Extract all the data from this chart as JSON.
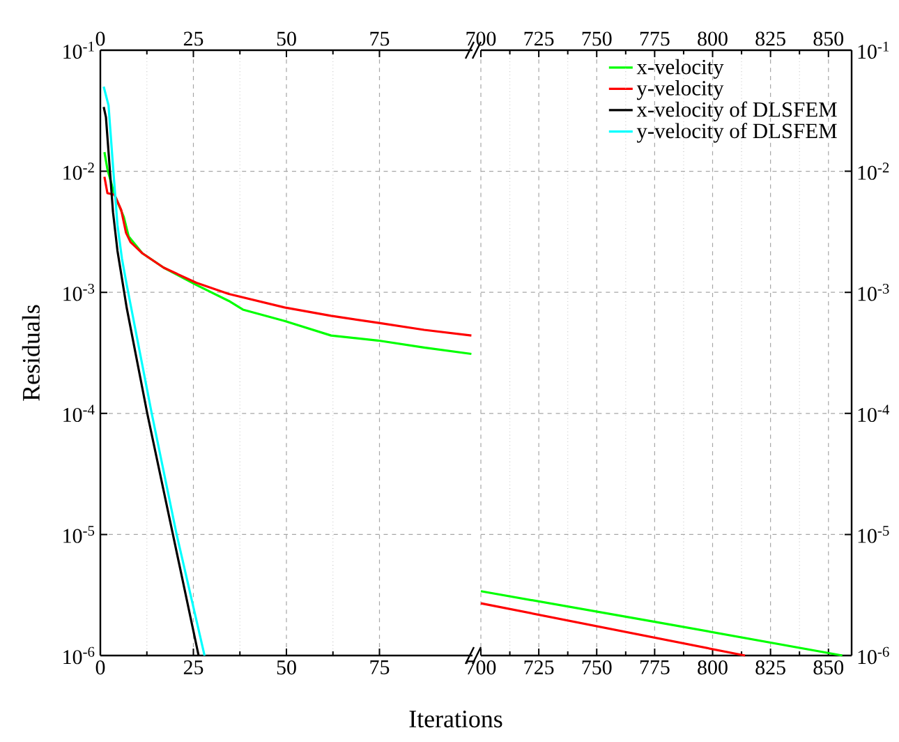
{
  "chart_data": [
    {
      "type": "line",
      "xlabel": "Iterations",
      "ylabel": "Residuals",
      "log": "y",
      "grid": true,
      "legend": "top right",
      "xlim": [
        0,
        100
      ],
      "xticks": [
        0,
        25,
        50,
        75
      ],
      "x2lim": [
        0,
        100
      ],
      "x2ticks": [
        0,
        25,
        50,
        75
      ],
      "ylim": [
        1e-06,
        0.1
      ],
      "yticks": [
        {
          "value": 1e-06,
          "label": "10$^{-6}$"
        },
        {
          "value": 1e-05,
          "label": "10$^{-5}$"
        },
        {
          "value": 0.0001,
          "label": "10$^{-4}$"
        },
        {
          "value": 0.001,
          "label": "10$^{-3}$"
        },
        {
          "value": 0.01,
          "label": "10$^{-2}$"
        },
        {
          "value": 0.1,
          "label": "10$^{-1}$"
        }
      ],
      "series": [
        {
          "name": "x-velocity",
          "color": "#00ff00",
          "x": [
            1.1,
            1.9,
            3.8,
            6.3,
            7.6,
            11.3,
            17,
            25.8,
            34.5,
            38.3,
            49.5,
            62,
            74.6,
            87,
            99.7
          ],
          "values": [
            0.0144,
            0.0104,
            0.0064,
            0.0042,
            0.0029,
            0.0021,
            0.0016,
            0.00115,
            0.00085,
            0.00072,
            0.00058,
            0.00044,
            0.0004,
            0.00035,
            0.00031
          ]
        },
        {
          "name": "y-velocity",
          "color": "#ff0000",
          "x": [
            1.1,
            1.9,
            3.8,
            5.6,
            6.9,
            8.1,
            11.3,
            17,
            25.8,
            34.5,
            49.5,
            62,
            74.6,
            87,
            99.7
          ],
          "values": [
            0.009,
            0.0066,
            0.0064,
            0.0048,
            0.0031,
            0.0026,
            0.0021,
            0.0016,
            0.0012,
            0.00097,
            0.00075,
            0.00064,
            0.00056,
            0.00049,
            0.00044
          ]
        },
        {
          "name": "x-velocity of DLSFEM",
          "color": "#000000",
          "x": [
            0.9,
            1.5,
            3.4,
            4.6,
            7.1,
            12.6,
            19.5,
            26.4
          ],
          "values": [
            0.034,
            0.028,
            0.0046,
            0.0022,
            0.00074,
            0.0001,
            1e-05,
            1e-06
          ]
        },
        {
          "name": "y-velocity of DLSFEM",
          "color": "#00ffff",
          "x": [
            0.9,
            2.2,
            3.4,
            4.6,
            5.8,
            7.1,
            13.8,
            20.5,
            28
          ],
          "values": [
            0.05,
            0.035,
            0.011,
            0.0036,
            0.0019,
            0.00115,
            0.0001,
            1e-05,
            1e-06
          ]
        }
      ]
    },
    {
      "type": "line",
      "log": "y2",
      "grid": true,
      "xlim": [
        700,
        860
      ],
      "xticks": [
        700,
        725,
        750,
        775,
        800,
        825,
        850
      ],
      "x2lim": [
        700,
        860
      ],
      "x2ticks": [
        700,
        725,
        750,
        775,
        800,
        825,
        850
      ],
      "y2lim": [
        1e-06,
        0.1
      ],
      "y2ticks": [
        {
          "value": 1e-06,
          "label": "10$^{-6}$"
        },
        {
          "value": 1e-05,
          "label": "10$^{-5}$"
        },
        {
          "value": 0.0001,
          "label": "10$^{-4}$"
        },
        {
          "value": 0.001,
          "label": "10$^{-3}$"
        },
        {
          "value": 0.01,
          "label": "10$^{-2}$"
        },
        {
          "value": 0.1,
          "label": "10$^{-1}$"
        }
      ],
      "series": [
        {
          "color": "#00ff00",
          "axis": "y2",
          "x": [
            700,
            775,
            856
          ],
          "values": [
            3.4e-06,
            1.9e-06,
            1e-06
          ]
        },
        {
          "color": "#ff0000",
          "axis": "y2",
          "x": [
            700,
            814
          ],
          "values": [
            2.7e-06,
            1e-06
          ]
        }
      ]
    }
  ]
}
